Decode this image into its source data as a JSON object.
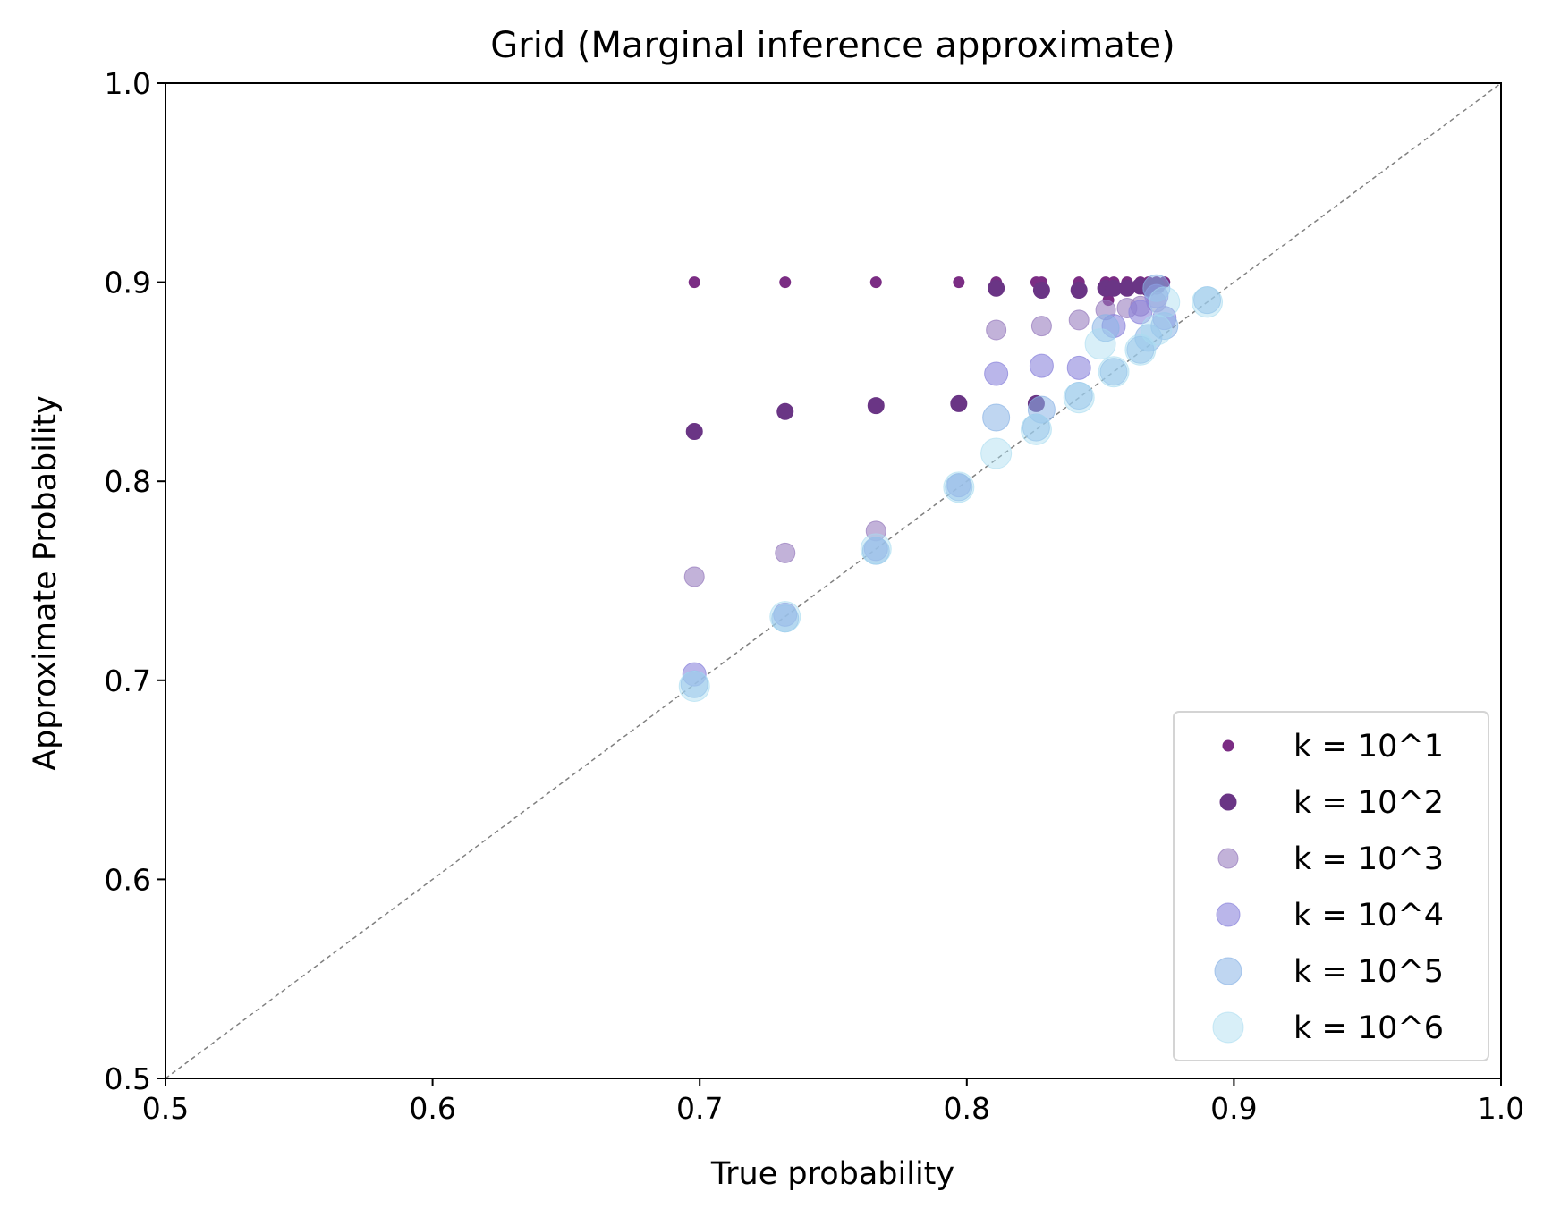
{
  "chart_data": {
    "type": "scatter",
    "title": "Grid (Marginal inference approximate)",
    "xlabel": "True probability",
    "ylabel": "Approximate Probability",
    "xlim": [
      0.5,
      1.0
    ],
    "ylim": [
      0.5,
      1.0
    ],
    "xticks": [
      "0.5",
      "0.6",
      "0.7",
      "0.8",
      "0.9",
      "1.0"
    ],
    "yticks": [
      "0.5",
      "0.6",
      "0.7",
      "0.8",
      "0.9",
      "1.0"
    ],
    "diagonal_reference": true,
    "legend_position": "lower-right",
    "series": [
      {
        "name": "k = 10^1",
        "color": "#7b2d84",
        "opacity": 1.0,
        "marker_size": "small",
        "points": [
          [
            0.698,
            0.9
          ],
          [
            0.732,
            0.9
          ],
          [
            0.766,
            0.9
          ],
          [
            0.797,
            0.9
          ],
          [
            0.811,
            0.9
          ],
          [
            0.826,
            0.9
          ],
          [
            0.828,
            0.9
          ],
          [
            0.842,
            0.9
          ],
          [
            0.852,
            0.9
          ],
          [
            0.855,
            0.9
          ],
          [
            0.86,
            0.9
          ],
          [
            0.865,
            0.9
          ],
          [
            0.868,
            0.9
          ],
          [
            0.871,
            0.9
          ],
          [
            0.874,
            0.9
          ],
          [
            0.853,
            0.891
          ]
        ]
      },
      {
        "name": "k = 10^2",
        "color": "#6a3585",
        "opacity": 1.0,
        "marker_size": "medium",
        "points": [
          [
            0.698,
            0.825
          ],
          [
            0.732,
            0.835
          ],
          [
            0.766,
            0.838
          ],
          [
            0.797,
            0.839
          ],
          [
            0.811,
            0.897
          ],
          [
            0.826,
            0.839
          ],
          [
            0.828,
            0.896
          ],
          [
            0.842,
            0.896
          ],
          [
            0.852,
            0.897
          ],
          [
            0.855,
            0.897
          ],
          [
            0.86,
            0.897
          ],
          [
            0.865,
            0.898
          ],
          [
            0.868,
            0.897
          ],
          [
            0.871,
            0.898
          ]
        ]
      },
      {
        "name": "k = 10^3",
        "color": "#9a7fbf",
        "opacity": 0.6,
        "marker_size": "large",
        "points": [
          [
            0.698,
            0.752
          ],
          [
            0.732,
            0.764
          ],
          [
            0.766,
            0.775
          ],
          [
            0.811,
            0.876
          ],
          [
            0.828,
            0.878
          ],
          [
            0.842,
            0.881
          ],
          [
            0.852,
            0.886
          ],
          [
            0.86,
            0.887
          ],
          [
            0.865,
            0.888
          ],
          [
            0.871,
            0.89
          ]
        ]
      },
      {
        "name": "k = 10^4",
        "color": "#8c86dc",
        "opacity": 0.6,
        "marker_size": "xlarge",
        "points": [
          [
            0.698,
            0.703
          ],
          [
            0.732,
            0.733
          ],
          [
            0.766,
            0.766
          ],
          [
            0.797,
            0.798
          ],
          [
            0.811,
            0.854
          ],
          [
            0.828,
            0.858
          ],
          [
            0.842,
            0.857
          ],
          [
            0.855,
            0.878
          ],
          [
            0.865,
            0.885
          ],
          [
            0.871,
            0.893
          ],
          [
            0.874,
            0.882
          ]
        ]
      },
      {
        "name": "k = 10^5",
        "color": "#8ab4e6",
        "opacity": 0.55,
        "marker_size": "xxlarge",
        "points": [
          [
            0.698,
            0.698
          ],
          [
            0.732,
            0.731
          ],
          [
            0.766,
            0.765
          ],
          [
            0.797,
            0.797
          ],
          [
            0.811,
            0.832
          ],
          [
            0.826,
            0.827
          ],
          [
            0.828,
            0.836
          ],
          [
            0.842,
            0.843
          ],
          [
            0.852,
            0.877
          ],
          [
            0.855,
            0.855
          ],
          [
            0.865,
            0.866
          ],
          [
            0.868,
            0.872
          ],
          [
            0.871,
            0.897
          ],
          [
            0.874,
            0.878
          ],
          [
            0.89,
            0.891
          ]
        ]
      },
      {
        "name": "k = 10^6",
        "color": "#a9dcf0",
        "opacity": 0.45,
        "marker_size": "xxxlarge",
        "points": [
          [
            0.698,
            0.697
          ],
          [
            0.732,
            0.732
          ],
          [
            0.766,
            0.766
          ],
          [
            0.797,
            0.797
          ],
          [
            0.811,
            0.814
          ],
          [
            0.826,
            0.826
          ],
          [
            0.842,
            0.842
          ],
          [
            0.85,
            0.869
          ],
          [
            0.855,
            0.855
          ],
          [
            0.865,
            0.866
          ],
          [
            0.871,
            0.876
          ],
          [
            0.874,
            0.89
          ],
          [
            0.89,
            0.89
          ]
        ]
      }
    ]
  }
}
